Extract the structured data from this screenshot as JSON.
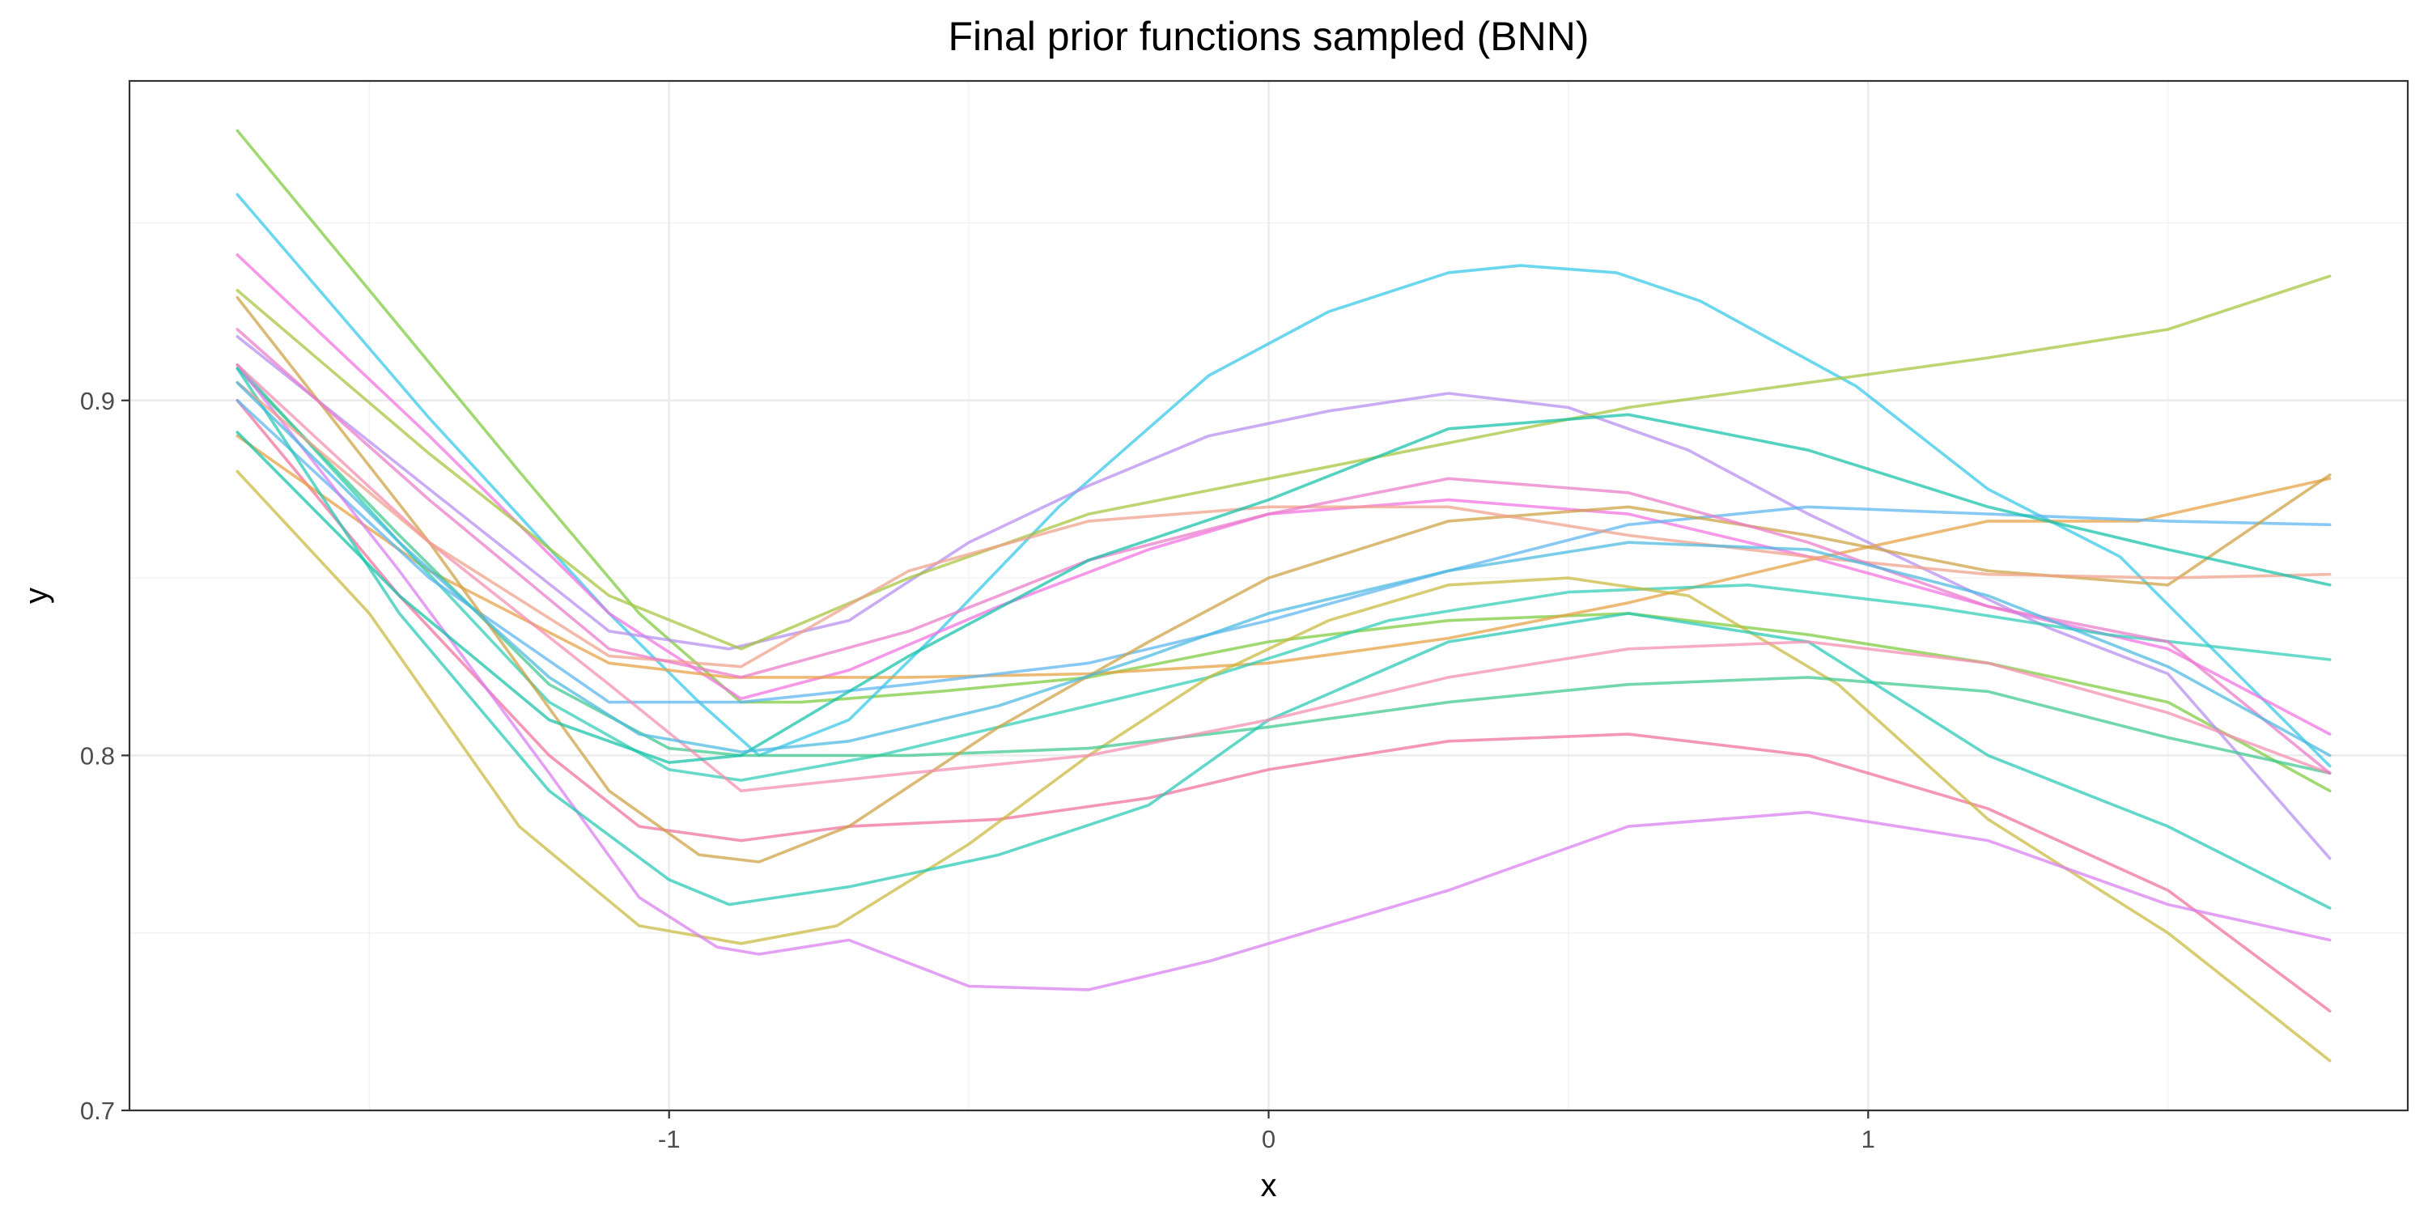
{
  "chart_data": {
    "type": "line",
    "title": "Final prior functions sampled (BNN)",
    "xlabel": "x",
    "ylabel": "y",
    "xlim": [
      -1.9,
      1.9
    ],
    "ylim": [
      0.7,
      0.99
    ],
    "x_ticks": [
      -1,
      0,
      1
    ],
    "x_tick_labels": [
      "-1",
      "0",
      "1"
    ],
    "y_ticks": [
      0.7,
      0.8,
      0.9
    ],
    "y_tick_labels": [
      "0.7",
      "0.8",
      "0.9"
    ],
    "grid": true,
    "legend": "none",
    "series": [
      {
        "color": "#7CCB3C",
        "x": [
          -1.72,
          -1.25,
          -1.05,
          -0.88,
          -0.78,
          -0.55,
          -0.3,
          0.0,
          0.3,
          0.6,
          0.9,
          1.2,
          1.5,
          1.77
        ],
        "y": [
          0.976,
          0.88,
          0.84,
          0.815,
          0.815,
          0.818,
          0.822,
          0.832,
          0.838,
          0.84,
          0.834,
          0.826,
          0.815,
          0.79
        ]
      },
      {
        "color": "#32C8E8",
        "x": [
          -1.72,
          -1.4,
          -1.1,
          -0.95,
          -0.85,
          -0.7,
          -0.55,
          -0.35,
          -0.1,
          0.1,
          0.3,
          0.42,
          0.58,
          0.72,
          0.98,
          1.2,
          1.42,
          1.77
        ],
        "y": [
          0.958,
          0.895,
          0.84,
          0.815,
          0.8,
          0.81,
          0.835,
          0.87,
          0.907,
          0.925,
          0.936,
          0.938,
          0.936,
          0.928,
          0.904,
          0.875,
          0.856,
          0.797
        ]
      },
      {
        "color": "#F26FE0",
        "x": [
          -1.72,
          -1.4,
          -1.1,
          -0.88,
          -0.7,
          -0.45,
          -0.2,
          0.0,
          0.3,
          0.6,
          0.9,
          1.2,
          1.5,
          1.77
        ],
        "y": [
          0.941,
          0.89,
          0.84,
          0.816,
          0.824,
          0.842,
          0.858,
          0.868,
          0.872,
          0.868,
          0.856,
          0.842,
          0.83,
          0.806
        ]
      },
      {
        "color": "#F06E9A",
        "x": [
          -1.72,
          -1.45,
          -1.2,
          -1.05,
          -0.88,
          -0.7,
          -0.45,
          -0.2,
          0.0,
          0.3,
          0.6,
          0.9,
          1.2,
          1.5,
          1.77
        ],
        "y": [
          0.9,
          0.845,
          0.8,
          0.78,
          0.776,
          0.78,
          0.782,
          0.788,
          0.796,
          0.804,
          0.806,
          0.8,
          0.785,
          0.762,
          0.728
        ]
      },
      {
        "color": "#B48CF0",
        "x": [
          -1.72,
          -1.4,
          -1.1,
          -0.9,
          -0.7,
          -0.5,
          -0.3,
          -0.1,
          0.1,
          0.3,
          0.5,
          0.7,
          0.9,
          1.1,
          1.3,
          1.5,
          1.77
        ],
        "y": [
          0.918,
          0.875,
          0.835,
          0.83,
          0.838,
          0.86,
          0.876,
          0.89,
          0.897,
          0.902,
          0.898,
          0.886,
          0.868,
          0.852,
          0.836,
          0.823,
          0.771
        ]
      },
      {
        "color": "#E6A040",
        "x": [
          -1.72,
          -1.4,
          -1.1,
          -0.9,
          -0.6,
          -0.3,
          0.0,
          0.3,
          0.6,
          0.9,
          1.2,
          1.45,
          1.77
        ],
        "y": [
          0.89,
          0.852,
          0.826,
          0.822,
          0.822,
          0.823,
          0.826,
          0.833,
          0.843,
          0.855,
          0.866,
          0.866,
          0.878
        ]
      },
      {
        "color": "#2ECCB4",
        "x": [
          -1.72,
          -1.45,
          -1.2,
          -1.0,
          -0.88,
          -0.65,
          -0.4,
          -0.1,
          0.2,
          0.5,
          0.8,
          1.1,
          1.4,
          1.77
        ],
        "y": [
          0.91,
          0.86,
          0.815,
          0.796,
          0.793,
          0.8,
          0.81,
          0.822,
          0.838,
          0.846,
          0.848,
          0.842,
          0.834,
          0.827
        ]
      },
      {
        "color": "#A3C43A",
        "x": [
          -1.72,
          -1.4,
          -1.1,
          -0.88,
          -0.6,
          -0.3,
          0.0,
          0.3,
          0.6,
          0.9,
          1.2,
          1.5,
          1.77
        ],
        "y": [
          0.931,
          0.885,
          0.845,
          0.83,
          0.85,
          0.868,
          0.878,
          0.888,
          0.898,
          0.905,
          0.912,
          0.92,
          0.935
        ]
      },
      {
        "color": "#C8B83A",
        "x": [
          -1.72,
          -1.5,
          -1.25,
          -1.05,
          -0.88,
          -0.72,
          -0.5,
          -0.3,
          -0.1,
          0.1,
          0.3,
          0.5,
          0.7,
          0.95,
          1.2,
          1.5,
          1.77
        ],
        "y": [
          0.88,
          0.84,
          0.78,
          0.752,
          0.747,
          0.752,
          0.775,
          0.8,
          0.822,
          0.838,
          0.848,
          0.85,
          0.845,
          0.82,
          0.782,
          0.75,
          0.714
        ]
      },
      {
        "color": "#5AB4F0",
        "x": [
          -1.72,
          -1.4,
          -1.1,
          -0.88,
          -0.6,
          -0.3,
          0.0,
          0.3,
          0.6,
          0.9,
          1.2,
          1.5,
          1.77
        ],
        "y": [
          0.9,
          0.85,
          0.815,
          0.815,
          0.82,
          0.826,
          0.838,
          0.852,
          0.865,
          0.87,
          0.868,
          0.866,
          0.865
        ]
      },
      {
        "color": "#3CC88C",
        "x": [
          -1.72,
          -1.45,
          -1.2,
          -1.0,
          -0.88,
          -0.6,
          -0.3,
          0.0,
          0.3,
          0.6,
          0.9,
          1.2,
          1.5,
          1.77
        ],
        "y": [
          0.909,
          0.862,
          0.82,
          0.802,
          0.8,
          0.8,
          0.802,
          0.808,
          0.815,
          0.82,
          0.822,
          0.818,
          0.805,
          0.795
        ]
      },
      {
        "color": "#CCA040",
        "x": [
          -1.72,
          -1.4,
          -1.1,
          -0.95,
          -0.85,
          -0.7,
          -0.45,
          -0.2,
          0.0,
          0.3,
          0.6,
          0.9,
          1.2,
          1.5,
          1.77
        ],
        "y": [
          0.929,
          0.86,
          0.79,
          0.772,
          0.77,
          0.78,
          0.808,
          0.832,
          0.85,
          0.866,
          0.87,
          0.862,
          0.852,
          0.848,
          0.879
        ]
      },
      {
        "color": "#D87CF0",
        "x": [
          -1.72,
          -1.45,
          -1.2,
          -1.05,
          -0.92,
          -0.85,
          -0.7,
          -0.5,
          -0.3,
          -0.1,
          0.1,
          0.3,
          0.6,
          0.9,
          1.2,
          1.5,
          1.77
        ],
        "y": [
          0.91,
          0.852,
          0.795,
          0.76,
          0.746,
          0.744,
          0.748,
          0.735,
          0.734,
          0.742,
          0.752,
          0.762,
          0.78,
          0.784,
          0.776,
          0.758,
          0.748
        ]
      },
      {
        "color": "#22C8B4",
        "x": [
          -1.72,
          -1.45,
          -1.2,
          -1.0,
          -0.9,
          -0.7,
          -0.45,
          -0.2,
          0.0,
          0.3,
          0.6,
          0.9,
          1.2,
          1.5,
          1.77
        ],
        "y": [
          0.909,
          0.84,
          0.79,
          0.765,
          0.758,
          0.763,
          0.772,
          0.786,
          0.81,
          0.832,
          0.84,
          0.832,
          0.8,
          0.78,
          0.757
        ]
      },
      {
        "color": "#F48CB0",
        "x": [
          -1.72,
          -1.4,
          -1.1,
          -0.88,
          -0.6,
          -0.3,
          0.0,
          0.3,
          0.6,
          0.9,
          1.2,
          1.5,
          1.77
        ],
        "y": [
          0.91,
          0.86,
          0.82,
          0.79,
          0.795,
          0.8,
          0.81,
          0.822,
          0.83,
          0.832,
          0.826,
          0.812,
          0.795
        ]
      },
      {
        "color": "#F0A088",
        "x": [
          -1.72,
          -1.4,
          -1.1,
          -0.88,
          -0.6,
          -0.3,
          0.0,
          0.3,
          0.6,
          0.9,
          1.2,
          1.5,
          1.77
        ],
        "y": [
          0.905,
          0.86,
          0.828,
          0.825,
          0.852,
          0.866,
          0.87,
          0.87,
          0.862,
          0.856,
          0.851,
          0.85,
          0.851
        ]
      },
      {
        "color": "#EA78C8",
        "x": [
          -1.72,
          -1.4,
          -1.1,
          -0.88,
          -0.6,
          -0.3,
          0.0,
          0.3,
          0.6,
          0.9,
          1.2,
          1.5,
          1.77
        ],
        "y": [
          0.92,
          0.872,
          0.83,
          0.822,
          0.835,
          0.855,
          0.868,
          0.878,
          0.874,
          0.86,
          0.842,
          0.832,
          0.795
        ]
      },
      {
        "color": "#12C0A8",
        "x": [
          -1.72,
          -1.45,
          -1.2,
          -1.0,
          -0.88,
          -0.6,
          -0.3,
          0.0,
          0.3,
          0.6,
          0.9,
          1.2,
          1.5,
          1.77
        ],
        "y": [
          0.891,
          0.845,
          0.81,
          0.798,
          0.8,
          0.828,
          0.855,
          0.872,
          0.892,
          0.896,
          0.886,
          0.87,
          0.858,
          0.848
        ]
      },
      {
        "color": "#48B8E0",
        "x": [
          -1.72,
          -1.45,
          -1.2,
          -1.05,
          -0.88,
          -0.7,
          -0.45,
          -0.2,
          0.0,
          0.3,
          0.6,
          0.9,
          1.2,
          1.5,
          1.77
        ],
        "y": [
          0.905,
          0.86,
          0.822,
          0.806,
          0.801,
          0.804,
          0.814,
          0.828,
          0.84,
          0.852,
          0.86,
          0.858,
          0.845,
          0.825,
          0.8
        ]
      }
    ]
  }
}
